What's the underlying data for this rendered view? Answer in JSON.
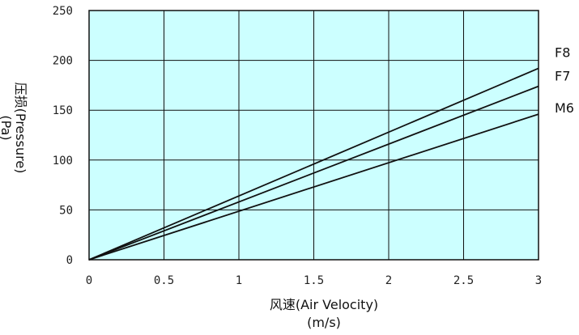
{
  "chart_data": {
    "type": "line",
    "xlabel": "风速(Air Velocity)",
    "xunit": "(m/s)",
    "ylabel": "压损(Pressure)",
    "yunit": "(Pa)",
    "xlim": [
      0,
      3
    ],
    "ylim": [
      0,
      250
    ],
    "x_ticks": [
      "0",
      "0.5",
      "1",
      "1.5",
      "2",
      "2.5",
      "3"
    ],
    "y_ticks": [
      "0",
      "50",
      "100",
      "150",
      "200",
      "250"
    ],
    "grid": true,
    "legend_placement": "right",
    "plot_background": "#ccffff",
    "line_color": "#111111",
    "series": [
      {
        "name": "F8",
        "x": [
          0,
          3
        ],
        "values": [
          0,
          192
        ]
      },
      {
        "name": "F7",
        "x": [
          0,
          3
        ],
        "values": [
          0,
          174
        ]
      },
      {
        "name": "M6",
        "x": [
          0,
          3
        ],
        "values": [
          0,
          146
        ]
      }
    ]
  }
}
